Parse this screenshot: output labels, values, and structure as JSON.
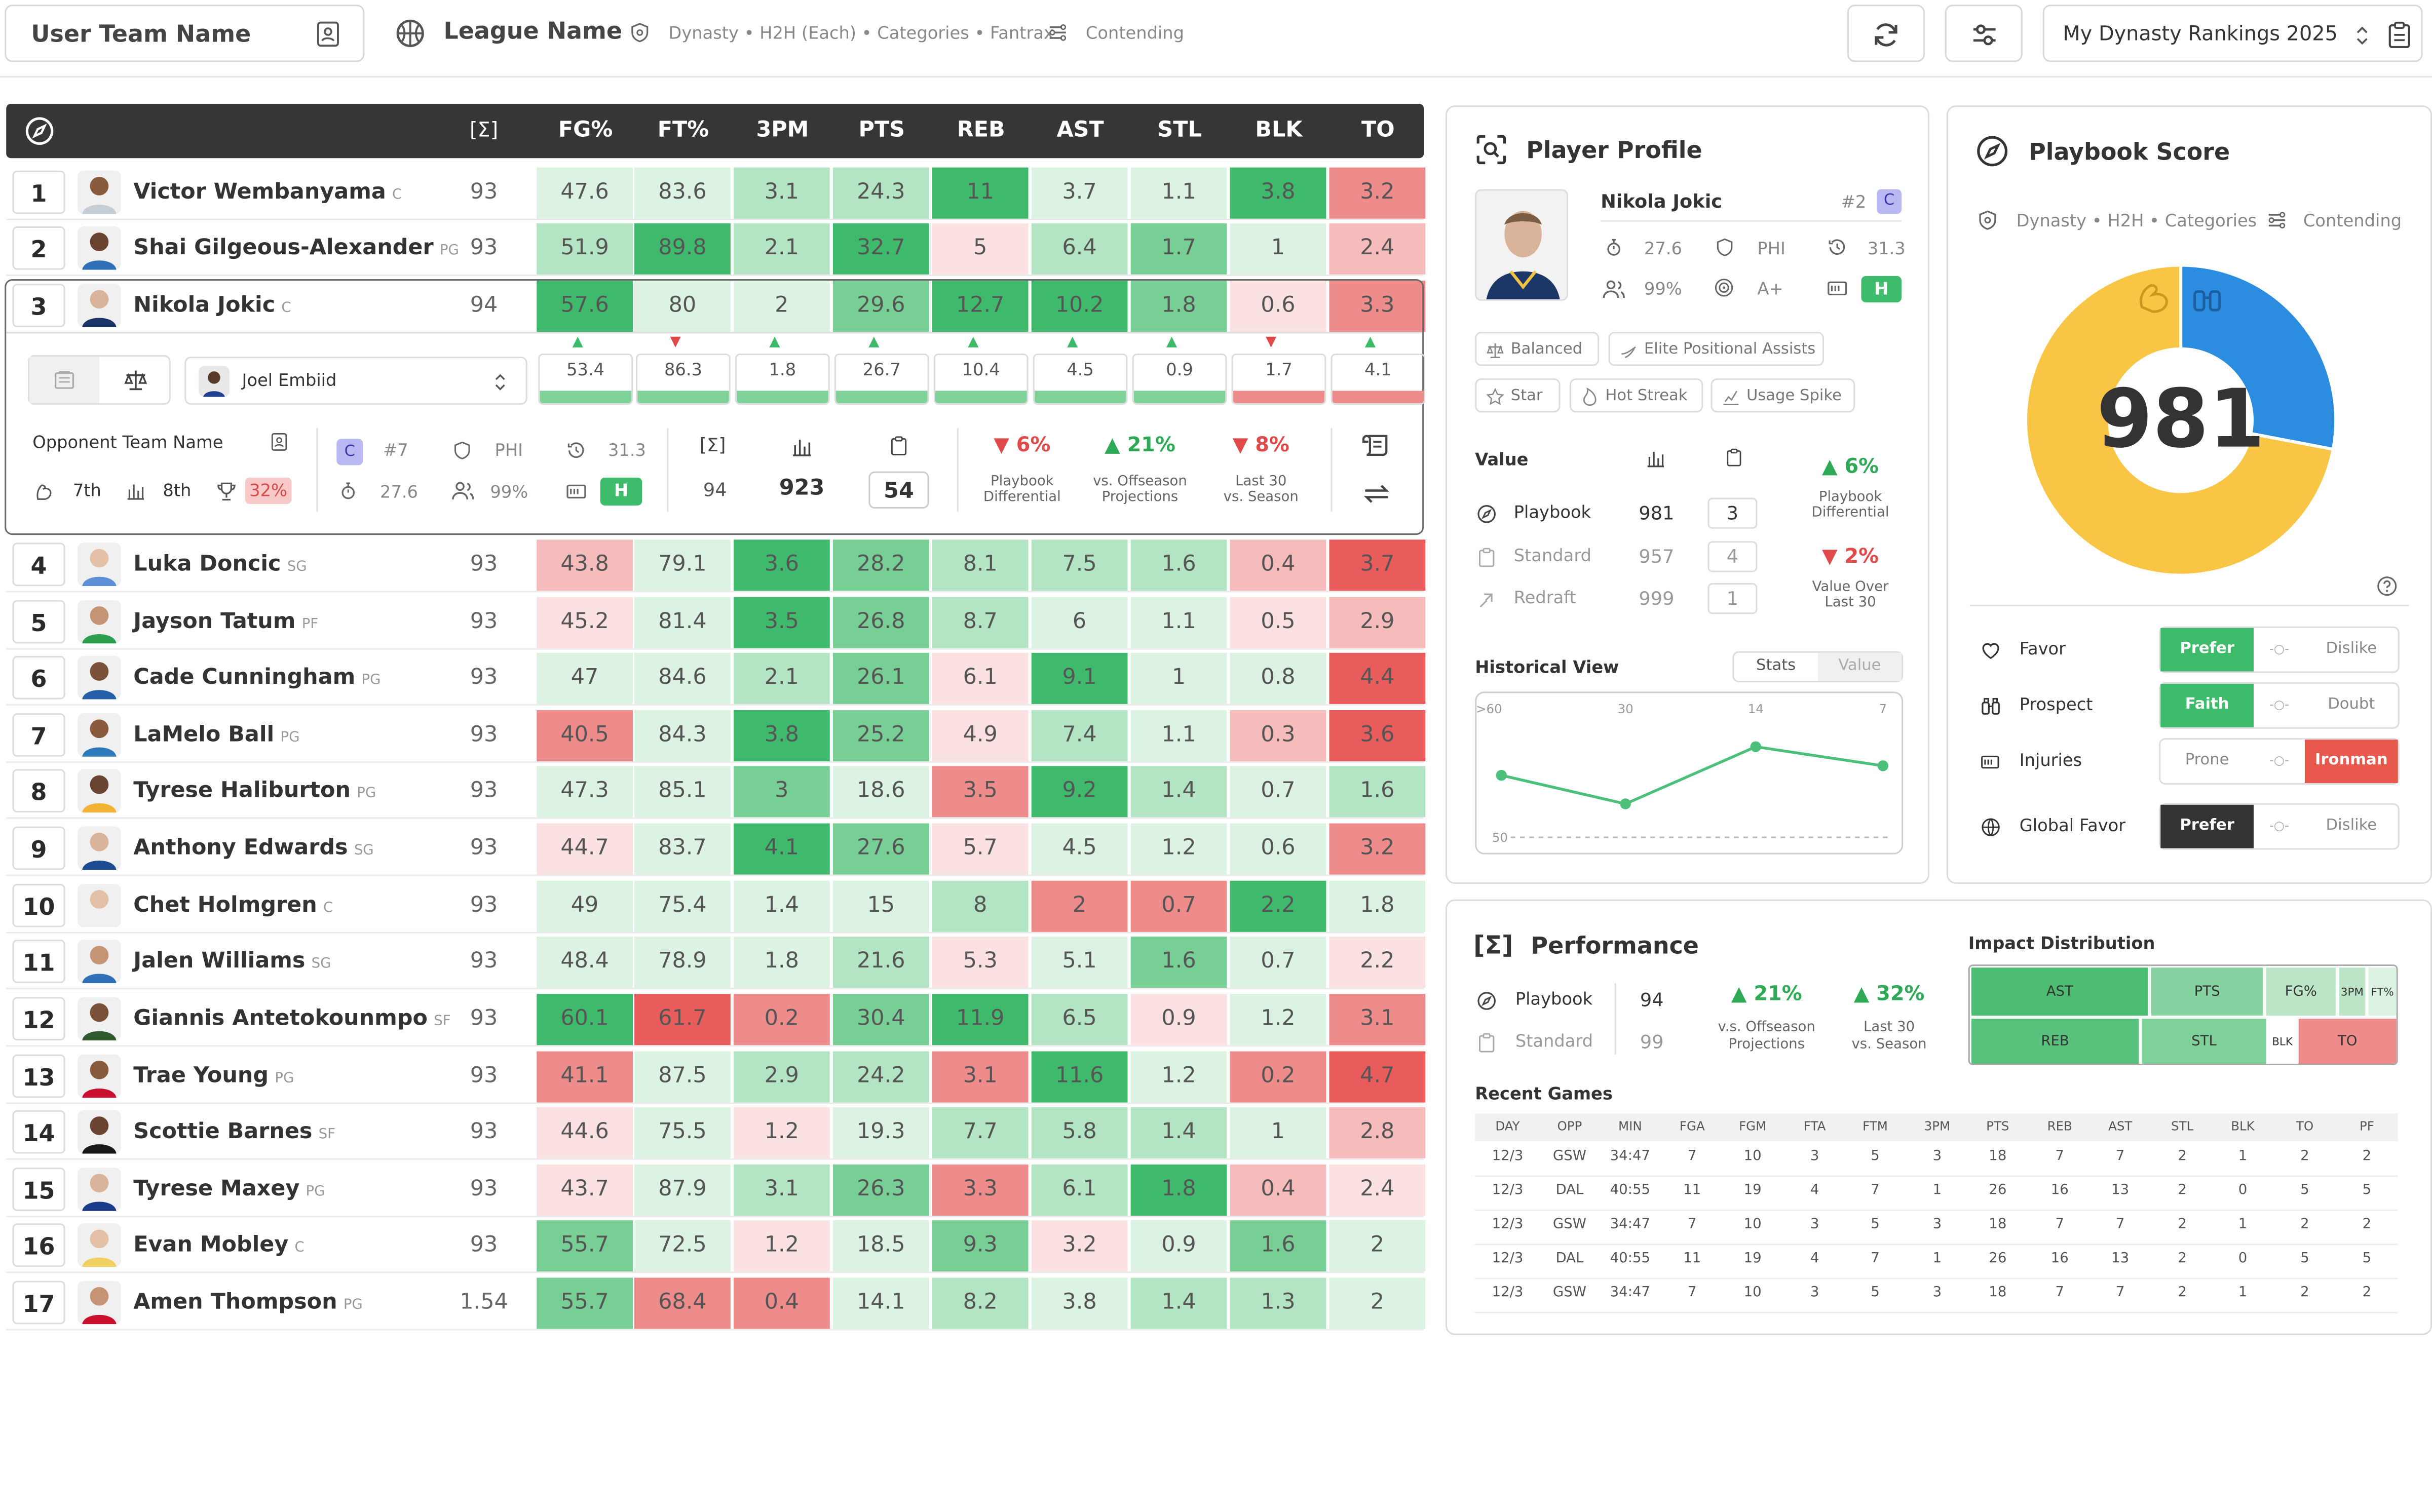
{
  "topbar": {
    "team_name": "User Team Name",
    "league_name": "League Name",
    "league_meta": "Dynasty • H2H (Each) • Categories • Fantrax",
    "status": "Contending",
    "rankings_select": "My Dynasty Rankings 2025"
  },
  "table": {
    "columns": [
      "FG%",
      "FT%",
      "3PM",
      "PTS",
      "REB",
      "AST",
      "STL",
      "BLK",
      "TO"
    ],
    "score_header": "[Σ]",
    "rows": [
      {
        "rank": "1",
        "name": "Victor Wembanyama",
        "pos": "C",
        "score": "93",
        "stats": [
          "47.6",
          "83.6",
          "3.1",
          "24.3",
          "11",
          "3.7",
          "1.1",
          "3.8",
          "3.2"
        ]
      },
      {
        "rank": "2",
        "name": "Shai Gilgeous-Alexander",
        "pos": "PG",
        "score": "93",
        "stats": [
          "51.9",
          "89.8",
          "2.1",
          "32.7",
          "5",
          "6.4",
          "1.7",
          "1",
          "2.4"
        ]
      },
      {
        "rank": "3",
        "name": "Nikola Jokic",
        "pos": "C",
        "score": "94",
        "stats": [
          "57.6",
          "80",
          "2",
          "29.6",
          "12.7",
          "10.2",
          "1.8",
          "0.6",
          "3.3"
        ]
      },
      {
        "rank": "4",
        "name": "Luka Doncic",
        "pos": "SG",
        "score": "93",
        "stats": [
          "43.8",
          "79.1",
          "3.6",
          "28.2",
          "8.1",
          "7.5",
          "1.6",
          "0.4",
          "3.7"
        ]
      },
      {
        "rank": "5",
        "name": "Jayson Tatum",
        "pos": "PF",
        "score": "93",
        "stats": [
          "45.2",
          "81.4",
          "3.5",
          "26.8",
          "8.7",
          "6",
          "1.1",
          "0.5",
          "2.9"
        ]
      },
      {
        "rank": "6",
        "name": "Cade Cunningham",
        "pos": "PG",
        "score": "93",
        "stats": [
          "47",
          "84.6",
          "2.1",
          "26.1",
          "6.1",
          "9.1",
          "1",
          "0.8",
          "4.4"
        ]
      },
      {
        "rank": "7",
        "name": "LaMelo Ball",
        "pos": "PG",
        "score": "93",
        "stats": [
          "40.5",
          "84.3",
          "3.8",
          "25.2",
          "4.9",
          "7.4",
          "1.1",
          "0.3",
          "3.6"
        ]
      },
      {
        "rank": "8",
        "name": "Tyrese Haliburton",
        "pos": "PG",
        "score": "93",
        "stats": [
          "47.3",
          "85.1",
          "3",
          "18.6",
          "3.5",
          "9.2",
          "1.4",
          "0.7",
          "1.6"
        ]
      },
      {
        "rank": "9",
        "name": "Anthony Edwards",
        "pos": "SG",
        "score": "93",
        "stats": [
          "44.7",
          "83.7",
          "4.1",
          "27.6",
          "5.7",
          "4.5",
          "1.2",
          "0.6",
          "3.2"
        ]
      },
      {
        "rank": "10",
        "name": "Chet Holmgren",
        "pos": "C",
        "score": "93",
        "stats": [
          "49",
          "75.4",
          "1.4",
          "15",
          "8",
          "2",
          "0.7",
          "2.2",
          "1.8"
        ]
      },
      {
        "rank": "11",
        "name": "Jalen Williams",
        "pos": "SG",
        "score": "93",
        "stats": [
          "48.4",
          "78.9",
          "1.8",
          "21.6",
          "5.3",
          "5.1",
          "1.6",
          "0.7",
          "2.2"
        ]
      },
      {
        "rank": "12",
        "name": "Giannis Antetokounmpo",
        "pos": "SF",
        "score": "93",
        "stats": [
          "60.1",
          "61.7",
          "0.2",
          "30.4",
          "11.9",
          "6.5",
          "0.9",
          "1.2",
          "3.1"
        ]
      },
      {
        "rank": "13",
        "name": "Trae Young",
        "pos": "PG",
        "score": "93",
        "stats": [
          "41.1",
          "87.5",
          "2.9",
          "24.2",
          "3.1",
          "11.6",
          "1.2",
          "0.2",
          "4.7"
        ]
      },
      {
        "rank": "14",
        "name": "Scottie Barnes",
        "pos": "SF",
        "score": "93",
        "stats": [
          "44.6",
          "75.5",
          "1.2",
          "19.3",
          "7.7",
          "5.8",
          "1.4",
          "1",
          "2.8"
        ]
      },
      {
        "rank": "15",
        "name": "Tyrese Maxey",
        "pos": "PG",
        "score": "93",
        "stats": [
          "43.7",
          "87.9",
          "3.1",
          "26.3",
          "3.3",
          "6.1",
          "1.8",
          "0.4",
          "2.4"
        ]
      },
      {
        "rank": "16",
        "name": "Evan Mobley",
        "pos": "C",
        "score": "93",
        "stats": [
          "55.7",
          "72.5",
          "1.2",
          "18.5",
          "9.3",
          "3.2",
          "0.9",
          "1.6",
          "2"
        ]
      },
      {
        "rank": "17",
        "name": "Amen Thompson",
        "pos": "PG",
        "score": "1.54",
        "stats": [
          "55.7",
          "68.4",
          "0.4",
          "14.1",
          "8.2",
          "3.8",
          "1.4",
          "1.3",
          "2"
        ]
      }
    ],
    "compare": {
      "opponent_player": "Joel Embiid",
      "values": [
        "53.4",
        "86.3",
        "1.8",
        "26.7",
        "10.4",
        "4.5",
        "0.9",
        "1.7",
        "4.1"
      ],
      "opponent_team": "Opponent Team Name",
      "ranks": [
        "7th",
        "8th",
        "32%"
      ],
      "pos_badge": "C",
      "rank_num": "#7",
      "team": "PHI",
      "age": "31.3",
      "fgpct": "27.6",
      "pct": "99%",
      "health": "H",
      "score_a": "94",
      "score_b": "923",
      "score_c": "54",
      "diffs": [
        {
          "value": "6%",
          "label1": "Playbook",
          "label2": "Differential"
        },
        {
          "value": "21%",
          "label1": "vs. Offseason",
          "label2": "Projections"
        },
        {
          "value": "8%",
          "label1": "Last 30",
          "label2": "vs. Season"
        }
      ]
    }
  },
  "profile": {
    "title": "Player Profile",
    "name": "Nikola Jokic",
    "rank": "#2",
    "pos": "C",
    "stat1": "27.6",
    "team": "PHI",
    "age": "31.3",
    "pct": "99%",
    "grade": "A+",
    "health": "H",
    "tags": [
      "Balanced",
      "Elite Positional Assists",
      "Star",
      "Hot Streak",
      "Usage Spike"
    ],
    "value_title": "Value",
    "value_rows": [
      {
        "label": "Playbook",
        "value": "981",
        "rank": "3"
      },
      {
        "label": "Standard",
        "value": "957",
        "rank": "4"
      },
      {
        "label": "Redraft",
        "value": "999",
        "rank": "1"
      }
    ],
    "diff1": {
      "value": "6%",
      "label1": "Playbook",
      "label2": "Differential"
    },
    "diff2": {
      "value": "2%",
      "label1": "Value Over",
      "label2": "Last 30"
    },
    "historical_title": "Historical View",
    "hist_tabs": [
      "Stats",
      "Value"
    ],
    "hist_axis_top": [
      ">60",
      "30",
      "14",
      "7"
    ],
    "hist_axis_left": "50"
  },
  "playbook": {
    "title": "Playbook Score",
    "meta": "Dynasty • H2H • Categories",
    "status": "Contending",
    "score": "981",
    "rows": [
      {
        "label": "Favor",
        "opts": [
          "Prefer",
          "Dislike"
        ]
      },
      {
        "label": "Prospect",
        "opts": [
          "Faith",
          "Doubt"
        ]
      },
      {
        "label": "Injuries",
        "opts": [
          "Prone",
          "Ironman"
        ]
      },
      {
        "label": "Global Favor",
        "opts": [
          "Prefer",
          "Dislike"
        ]
      }
    ]
  },
  "performance": {
    "title": "Performance",
    "rows": [
      {
        "label": "Playbook",
        "value": "94"
      },
      {
        "label": "Standard",
        "value": "99"
      }
    ],
    "diff1": {
      "value": "21%",
      "label1": "v.s. Offseason",
      "label2": "Projections"
    },
    "diff2": {
      "value": "32%",
      "label1": "Last 30",
      "label2": "vs. Season"
    },
    "impact_title": "Impact Distribution",
    "impact_cells": [
      "AST",
      "PTS",
      "FG%",
      "3PM",
      "FT%",
      "REB",
      "STL",
      "BLK",
      "TO"
    ],
    "games_title": "Recent Games",
    "games_headers": [
      "DAY",
      "OPP",
      "MIN",
      "FGA",
      "FGM",
      "FTA",
      "FTM",
      "3PM",
      "PTS",
      "REB",
      "AST",
      "STL",
      "BLK",
      "TO",
      "PF"
    ],
    "games": [
      [
        "12/3",
        "GSW",
        "34:47",
        "7",
        "10",
        "3",
        "5",
        "3",
        "18",
        "7",
        "7",
        "2",
        "1",
        "2",
        "2"
      ],
      [
        "12/3",
        "DAL",
        "40:55",
        "11",
        "19",
        "4",
        "7",
        "1",
        "26",
        "16",
        "13",
        "2",
        "0",
        "5",
        "5"
      ],
      [
        "12/3",
        "GSW",
        "34:47",
        "7",
        "10",
        "3",
        "5",
        "3",
        "18",
        "7",
        "7",
        "2",
        "1",
        "2",
        "2"
      ],
      [
        "12/3",
        "DAL",
        "40:55",
        "11",
        "19",
        "4",
        "7",
        "1",
        "26",
        "16",
        "13",
        "2",
        "0",
        "5",
        "5"
      ],
      [
        "12/3",
        "GSW",
        "34:47",
        "7",
        "10",
        "3",
        "5",
        "3",
        "18",
        "7",
        "7",
        "2",
        "1",
        "2",
        "2"
      ]
    ]
  },
  "chart_data": [
    {
      "type": "pie",
      "categories": [
        "yellow",
        "blue"
      ],
      "values": [
        72,
        28
      ],
      "colors": [
        "#f8c545",
        "#2b8ce0"
      ],
      "center_label": "981"
    },
    {
      "type": "line",
      "x": [
        ">60",
        "30",
        "14",
        "7"
      ],
      "values": [
        55,
        52,
        58,
        56
      ]
    }
  ]
}
